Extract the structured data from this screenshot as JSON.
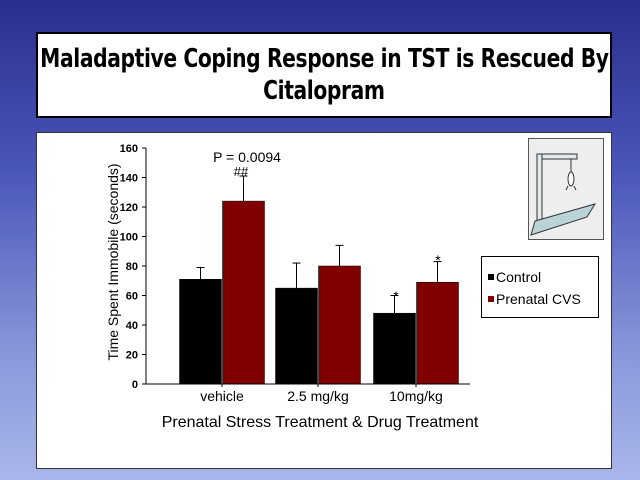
{
  "slide": {
    "title_line1": "Maladaptive Coping Response in TST is Rescued By",
    "title_line2": "Citalopram"
  },
  "annotations": {
    "p_value": "P = 0.0094",
    "hash_mark": "##",
    "star_10_control": "*",
    "star_10_prenatal": "*"
  },
  "legend": {
    "items": [
      {
        "label": "Control",
        "color": "#000000"
      },
      {
        "label": "Prenatal CVS",
        "color": "#800000"
      }
    ]
  },
  "chart_data": {
    "type": "bar",
    "categories": [
      "vehicle",
      "2.5 mg/kg",
      "10mg/kg"
    ],
    "series": [
      {
        "name": "Control",
        "color": "#000000",
        "values": [
          71,
          65,
          48
        ],
        "errors": [
          8,
          17,
          12
        ]
      },
      {
        "name": "Prenatal CVS",
        "color": "#800000",
        "values": [
          124,
          80,
          69
        ],
        "errors": [
          17,
          14,
          14
        ]
      }
    ],
    "xlabel": "Prenatal Stress Treatment & Drug Treatment",
    "ylabel": "Time Spent Immobile (seconds)",
    "ylim": [
      0,
      160
    ],
    "yticks": [
      "0",
      "20",
      "40",
      "60",
      "80",
      "100",
      "120",
      "140",
      "160"
    ],
    "grid": false,
    "legend_position": "right"
  },
  "illustration": {
    "icon": "mouse-tail-suspension-icon"
  }
}
